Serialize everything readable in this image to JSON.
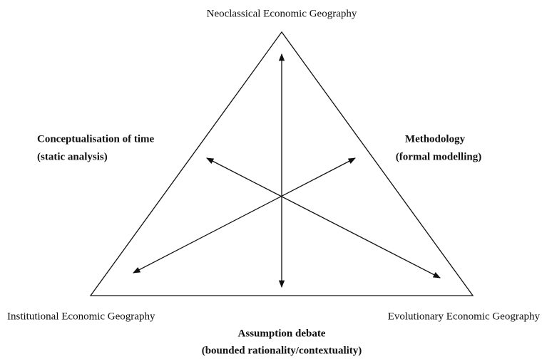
{
  "vertices": {
    "top": "Neoclassical Economic Geography",
    "left": "Institutional Economic Geography",
    "right": "Evolutionary Economic Geography"
  },
  "dimensions": [
    {
      "title": "Conceptualisation of time",
      "subtitle": "(static analysis)"
    },
    {
      "title": "Methodology",
      "subtitle": "(formal modelling)"
    },
    {
      "title": "Assumption debate",
      "subtitle": "(bounded rationality/contextuality)"
    }
  ]
}
